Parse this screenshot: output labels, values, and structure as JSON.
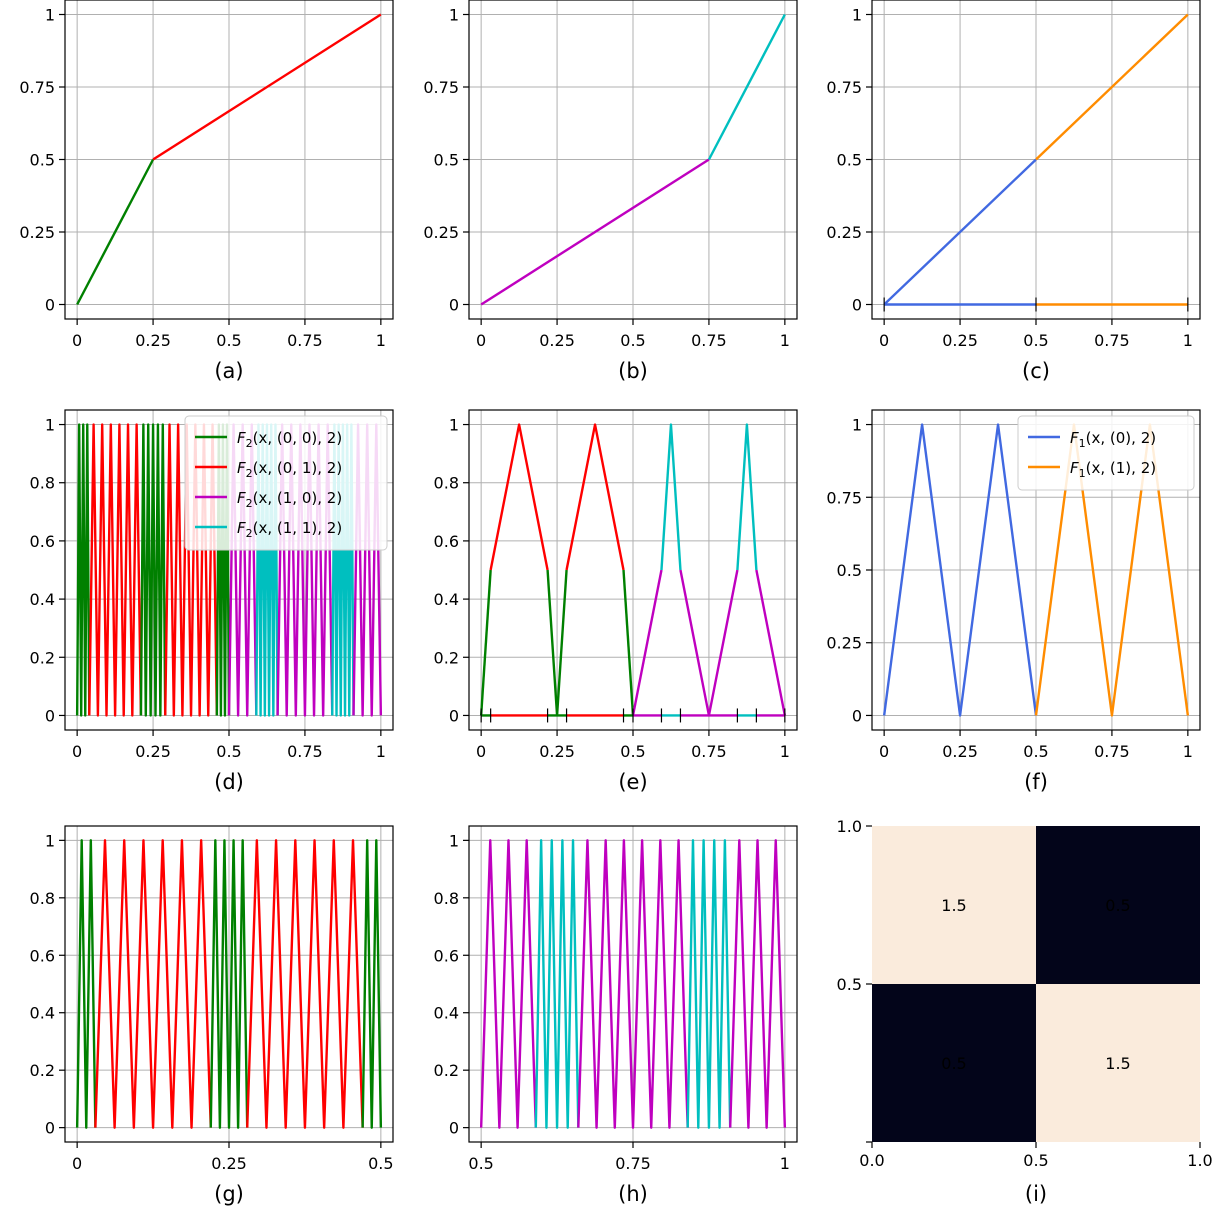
{
  "chart_data": [
    {
      "id": "a",
      "type": "line",
      "caption": "(a)",
      "xlim": [
        -0.04,
        1.04
      ],
      "ylim": [
        -0.05,
        1.05
      ],
      "xticks": [
        0,
        0.25,
        0.5,
        0.75,
        1
      ],
      "xticklabels": [
        "0",
        "0.25",
        "0.5",
        "0.75",
        "1"
      ],
      "yticks": [
        0,
        0.25,
        0.5,
        0.75,
        1
      ],
      "yticklabels": [
        "0",
        "0.25",
        "0.5",
        "0.75",
        "1"
      ],
      "grid": true,
      "series": [
        {
          "color": "#008000",
          "points": [
            [
              0,
              0
            ],
            [
              0.25,
              0.5
            ]
          ]
        },
        {
          "color": "#ff0000",
          "points": [
            [
              0.25,
              0.5
            ],
            [
              1,
              1
            ]
          ]
        }
      ]
    },
    {
      "id": "b",
      "type": "line",
      "caption": "(b)",
      "xlim": [
        -0.04,
        1.04
      ],
      "ylim": [
        -0.05,
        1.05
      ],
      "xticks": [
        0,
        0.25,
        0.5,
        0.75,
        1
      ],
      "xticklabels": [
        "0",
        "0.25",
        "0.5",
        "0.75",
        "1"
      ],
      "yticks": [
        0,
        0.25,
        0.5,
        0.75,
        1
      ],
      "yticklabels": [
        "0",
        "0.25",
        "0.5",
        "0.75",
        "1"
      ],
      "grid": true,
      "series": [
        {
          "color": "#bf00bf",
          "points": [
            [
              0,
              0
            ],
            [
              0.75,
              0.5
            ]
          ]
        },
        {
          "color": "#00bfbf",
          "points": [
            [
              0.75,
              0.5
            ],
            [
              1,
              1
            ]
          ]
        }
      ]
    },
    {
      "id": "c",
      "type": "line",
      "caption": "(c)",
      "xlim": [
        -0.04,
        1.04
      ],
      "ylim": [
        -0.05,
        1.05
      ],
      "xticks": [
        0,
        0.25,
        0.5,
        0.75,
        1
      ],
      "xticklabels": [
        "0",
        "0.25",
        "0.5",
        "0.75",
        "1"
      ],
      "yticks": [
        0,
        0.25,
        0.5,
        0.75,
        1
      ],
      "yticklabels": [
        "0",
        "0.25",
        "0.5",
        "0.75",
        "1"
      ],
      "grid": true,
      "series": [
        {
          "color": "#4169e1",
          "points": [
            [
              0,
              0
            ],
            [
              0.5,
              0.5
            ]
          ]
        },
        {
          "color": "#ff8c00",
          "points": [
            [
              0.5,
              0.5
            ],
            [
              1,
              1
            ]
          ]
        },
        {
          "color": "#4169e1",
          "points": [
            [
              0,
              0
            ],
            [
              0.5,
              0
            ]
          ]
        },
        {
          "color": "#ff8c00",
          "points": [
            [
              0.5,
              0
            ],
            [
              1,
              0
            ]
          ]
        }
      ],
      "markers": [
        0,
        0.5,
        1
      ]
    },
    {
      "id": "d",
      "type": "line",
      "caption": "(d)",
      "xlim": [
        -0.04,
        1.04
      ],
      "ylim": [
        -0.05,
        1.05
      ],
      "xticks": [
        0,
        0.25,
        0.5,
        0.75,
        1
      ],
      "xticklabels": [
        "0",
        "0.25",
        "0.5",
        "0.75",
        "1"
      ],
      "yticks": [
        0,
        0.2,
        0.4,
        0.6,
        0.8,
        1
      ],
      "yticklabels": [
        "0",
        "0.2",
        "0.4",
        "0.6",
        "0.8",
        "1"
      ],
      "grid": true,
      "sawtooth": [
        {
          "range": [
            0,
            0.04
          ],
          "teeth": 3,
          "color": "#008000"
        },
        {
          "range": [
            0.04,
            0.21
          ],
          "teeth": 6,
          "color": "#ff0000"
        },
        {
          "range": [
            0.21,
            0.29
          ],
          "teeth": 5,
          "color": "#008000"
        },
        {
          "range": [
            0.29,
            0.46
          ],
          "teeth": 6,
          "color": "#ff0000"
        },
        {
          "range": [
            0.46,
            0.5
          ],
          "teeth": 3,
          "color": "#008000"
        },
        {
          "range": [
            0.5,
            0.59
          ],
          "teeth": 3,
          "color": "#bf00bf"
        },
        {
          "range": [
            0.59,
            0.66
          ],
          "teeth": 5,
          "color": "#00bfbf"
        },
        {
          "range": [
            0.66,
            0.84
          ],
          "teeth": 6,
          "color": "#bf00bf"
        },
        {
          "range": [
            0.84,
            0.91
          ],
          "teeth": 5,
          "color": "#00bfbf"
        },
        {
          "range": [
            0.91,
            1.0
          ],
          "teeth": 3,
          "color": "#bf00bf"
        }
      ],
      "legend": {
        "placement": "top-right",
        "entries": [
          {
            "label": "F2(x, (0, 0), 2)",
            "color": "#008000"
          },
          {
            "label": "F2(x, (0, 1), 2)",
            "color": "#ff0000"
          },
          {
            "label": "F2(x, (1, 0), 2)",
            "color": "#bf00bf"
          },
          {
            "label": "F2(x, (1, 1), 2)",
            "color": "#00bfbf"
          }
        ]
      }
    },
    {
      "id": "e",
      "type": "line",
      "caption": "(e)",
      "xlim": [
        -0.04,
        1.04
      ],
      "ylim": [
        -0.05,
        1.05
      ],
      "xticks": [
        0,
        0.25,
        0.5,
        0.75,
        1
      ],
      "xticklabels": [
        "0",
        "0.25",
        "0.5",
        "0.75",
        "1"
      ],
      "yticks": [
        0,
        0.2,
        0.4,
        0.6,
        0.8,
        1
      ],
      "yticklabels": [
        "0",
        "0.2",
        "0.4",
        "0.6",
        "0.8",
        "1"
      ],
      "grid": true,
      "series": [
        {
          "color": "#008000",
          "points": [
            [
              0,
              0
            ],
            [
              0.03125,
              0.5
            ]
          ]
        },
        {
          "color": "#ff0000",
          "points": [
            [
              0.03125,
              0.5
            ],
            [
              0.125,
              1
            ],
            [
              0.21875,
              0.5
            ]
          ]
        },
        {
          "color": "#008000",
          "points": [
            [
              0.21875,
              0.5
            ],
            [
              0.25,
              0
            ],
            [
              0.28125,
              0.5
            ]
          ]
        },
        {
          "color": "#ff0000",
          "points": [
            [
              0.28125,
              0.5
            ],
            [
              0.375,
              1
            ],
            [
              0.46875,
              0.5
            ]
          ]
        },
        {
          "color": "#008000",
          "points": [
            [
              0.46875,
              0.5
            ],
            [
              0.5,
              0
            ]
          ]
        },
        {
          "color": "#bf00bf",
          "points": [
            [
              0.5,
              0
            ],
            [
              0.59375,
              0.5
            ]
          ]
        },
        {
          "color": "#00bfbf",
          "points": [
            [
              0.59375,
              0.5
            ],
            [
              0.625,
              1
            ],
            [
              0.65625,
              0.5
            ]
          ]
        },
        {
          "color": "#bf00bf",
          "points": [
            [
              0.65625,
              0.5
            ],
            [
              0.75,
              0
            ],
            [
              0.84375,
              0.5
            ]
          ]
        },
        {
          "color": "#00bfbf",
          "points": [
            [
              0.84375,
              0.5
            ],
            [
              0.875,
              1
            ],
            [
              0.90625,
              0.5
            ]
          ]
        },
        {
          "color": "#bf00bf",
          "points": [
            [
              0.90625,
              0.5
            ],
            [
              1,
              0
            ]
          ]
        },
        {
          "color": "#008000",
          "points": [
            [
              0,
              0
            ],
            [
              0.03125,
              0
            ]
          ]
        },
        {
          "color": "#ff0000",
          "points": [
            [
              0.03125,
              0
            ],
            [
              0.21875,
              0
            ]
          ]
        },
        {
          "color": "#008000",
          "points": [
            [
              0.21875,
              0
            ],
            [
              0.28125,
              0
            ]
          ]
        },
        {
          "color": "#ff0000",
          "points": [
            [
              0.28125,
              0
            ],
            [
              0.46875,
              0
            ]
          ]
        },
        {
          "color": "#008000",
          "points": [
            [
              0.46875,
              0
            ],
            [
              0.5,
              0
            ]
          ]
        },
        {
          "color": "#bf00bf",
          "points": [
            [
              0.5,
              0
            ],
            [
              0.59375,
              0
            ]
          ]
        },
        {
          "color": "#00bfbf",
          "points": [
            [
              0.59375,
              0
            ],
            [
              0.65625,
              0
            ]
          ]
        },
        {
          "color": "#bf00bf",
          "points": [
            [
              0.65625,
              0
            ],
            [
              0.84375,
              0
            ]
          ]
        },
        {
          "color": "#00bfbf",
          "points": [
            [
              0.84375,
              0
            ],
            [
              0.90625,
              0
            ]
          ]
        },
        {
          "color": "#bf00bf",
          "points": [
            [
              0.90625,
              0
            ],
            [
              1,
              0
            ]
          ]
        }
      ],
      "markers": [
        0,
        0.03125,
        0.21875,
        0.28125,
        0.46875,
        0.5,
        0.59375,
        0.65625,
        0.84375,
        0.90625,
        1
      ]
    },
    {
      "id": "f",
      "type": "line",
      "caption": "(f)",
      "xlim": [
        -0.04,
        1.04
      ],
      "ylim": [
        -0.05,
        1.05
      ],
      "xticks": [
        0,
        0.25,
        0.5,
        0.75,
        1
      ],
      "xticklabels": [
        "0",
        "0.25",
        "0.5",
        "0.75",
        "1"
      ],
      "yticks": [
        0,
        0.25,
        0.5,
        0.75,
        1
      ],
      "yticklabels": [
        "0",
        "0.25",
        "0.5",
        "0.75",
        "1"
      ],
      "grid": true,
      "series": [
        {
          "color": "#4169e1",
          "points": [
            [
              0,
              0
            ],
            [
              0.125,
              1
            ],
            [
              0.25,
              0
            ],
            [
              0.375,
              1
            ],
            [
              0.5,
              0
            ]
          ]
        },
        {
          "color": "#ff8c00",
          "points": [
            [
              0.5,
              0
            ],
            [
              0.625,
              1
            ],
            [
              0.75,
              0
            ],
            [
              0.875,
              1
            ],
            [
              1,
              0
            ]
          ]
        }
      ],
      "legend": {
        "placement": "top-right",
        "entries": [
          {
            "label": "F1(x, (0), 2)",
            "color": "#4169e1"
          },
          {
            "label": "F1(x, (1), 2)",
            "color": "#ff8c00"
          }
        ]
      }
    },
    {
      "id": "g",
      "type": "line",
      "caption": "(g)",
      "xlim": [
        -0.02,
        0.52
      ],
      "ylim": [
        -0.05,
        1.05
      ],
      "xticks": [
        0,
        0.25,
        0.5
      ],
      "xticklabels": [
        "0",
        "0.25",
        "0.5"
      ],
      "yticks": [
        0,
        0.2,
        0.4,
        0.6,
        0.8,
        1
      ],
      "yticklabels": [
        "0",
        "0.2",
        "0.4",
        "0.6",
        "0.8",
        "1"
      ],
      "grid": true,
      "sawtooth": [
        {
          "range": [
            0,
            0.03
          ],
          "teeth": 2,
          "color": "#008000"
        },
        {
          "range": [
            0.03,
            0.22
          ],
          "teeth": 6,
          "color": "#ff0000"
        },
        {
          "range": [
            0.22,
            0.28
          ],
          "teeth": 4,
          "color": "#008000"
        },
        {
          "range": [
            0.28,
            0.47
          ],
          "teeth": 6,
          "color": "#ff0000"
        },
        {
          "range": [
            0.47,
            0.5
          ],
          "teeth": 2,
          "color": "#008000"
        }
      ]
    },
    {
      "id": "h",
      "type": "line",
      "caption": "(h)",
      "xlim": [
        0.48,
        1.02
      ],
      "ylim": [
        -0.05,
        1.05
      ],
      "xticks": [
        0.5,
        0.75,
        1
      ],
      "xticklabels": [
        "0.5",
        "0.75",
        "1"
      ],
      "yticks": [
        0,
        0.2,
        0.4,
        0.6,
        0.8,
        1
      ],
      "yticklabels": [
        "0",
        "0.2",
        "0.4",
        "0.6",
        "0.8",
        "1"
      ],
      "grid": true,
      "sawtooth": [
        {
          "range": [
            0.5,
            0.59
          ],
          "teeth": 3,
          "color": "#bf00bf"
        },
        {
          "range": [
            0.59,
            0.66
          ],
          "teeth": 4,
          "color": "#00bfbf"
        },
        {
          "range": [
            0.66,
            0.84
          ],
          "teeth": 6,
          "color": "#bf00bf"
        },
        {
          "range": [
            0.84,
            0.91
          ],
          "teeth": 4,
          "color": "#00bfbf"
        },
        {
          "range": [
            0.91,
            1.0
          ],
          "teeth": 3,
          "color": "#bf00bf"
        }
      ]
    },
    {
      "id": "i",
      "type": "heatmap",
      "caption": "(i)",
      "xlim": [
        0,
        1
      ],
      "ylim": [
        0,
        1
      ],
      "xticks": [
        0,
        0.5,
        1
      ],
      "xticklabels": [
        "0.0",
        "0.5",
        "1.0"
      ],
      "yticks": [
        0.5,
        1
      ],
      "yticklabels": [
        "0.5",
        "1.0"
      ],
      "grid": false,
      "cells": [
        {
          "x": [
            0,
            0.5
          ],
          "y": [
            0.5,
            1
          ],
          "value": 1.5,
          "label": "1.5"
        },
        {
          "x": [
            0.5,
            1
          ],
          "y": [
            0.5,
            1
          ],
          "value": 0.5,
          "label": "0.5"
        },
        {
          "x": [
            0,
            0.5
          ],
          "y": [
            0,
            0.5
          ],
          "value": 0.5,
          "label": "0.5"
        },
        {
          "x": [
            0.5,
            1
          ],
          "y": [
            0,
            0.5
          ],
          "value": 1.5,
          "label": "1.5"
        }
      ],
      "colors": {
        "high": "#faebdc",
        "low": "#03051a",
        "high_text": "#262626",
        "low_text": "#ffffff"
      }
    }
  ]
}
